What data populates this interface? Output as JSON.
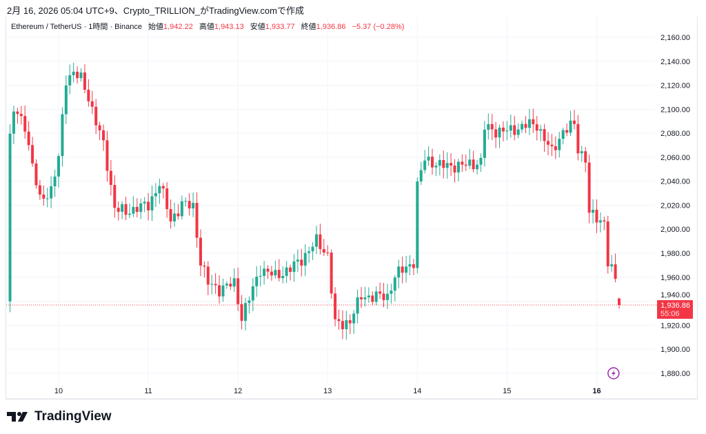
{
  "caption": "2月 16, 2026 05:04 UTC+9、Crypto_TRILLION_がTradingView.comで作成",
  "legend": {
    "symbol": "Ethereum / TetherUS · 1時間 · Binance",
    "open_label": "始値",
    "open": "1,942.22",
    "high_label": "高値",
    "high": "1,943.13",
    "low_label": "安値",
    "low": "1,933.77",
    "close_label": "終値",
    "close": "1,936.86",
    "change": "−5.37 (−0.28%)"
  },
  "price_label": {
    "price": "1,936.86",
    "countdown": "55:06"
  },
  "logo_text": "TradingView",
  "colors": {
    "up": "#22ab94",
    "down": "#f23645",
    "grid": "#f0f3fa",
    "lightning": "#9c27b0"
  },
  "chart_data": {
    "type": "candlestick",
    "interval": "1h",
    "x_unit": "hours since Feb 10 00:00",
    "xticks": [
      {
        "hour": 0,
        "label": "10"
      },
      {
        "hour": 24,
        "label": "11"
      },
      {
        "hour": 48,
        "label": "12"
      },
      {
        "hour": 72,
        "label": "13"
      },
      {
        "hour": 96,
        "label": "14"
      },
      {
        "hour": 120,
        "label": "15"
      },
      {
        "hour": 144,
        "label": "16"
      }
    ],
    "yticks": [
      "2,160.00",
      "2,140.00",
      "2,120.00",
      "2,100.00",
      "2,080.00",
      "2,060.00",
      "2,040.00",
      "2,020.00",
      "2,000.00",
      "1,980.00",
      "1,960.00",
      "1,940.00",
      "1,920.00",
      "1,900.00",
      "1,880.00"
    ],
    "ylim": [
      1870,
      2172
    ],
    "close_path": [
      [
        -13,
        2076
      ],
      [
        -12,
        2099
      ],
      [
        -9,
        2087
      ],
      [
        -7,
        2053
      ],
      [
        -5,
        2024
      ],
      [
        -2,
        2033
      ],
      [
        0,
        2059
      ],
      [
        2,
        2125
      ],
      [
        4,
        2131
      ],
      [
        6,
        2125
      ],
      [
        8,
        2110
      ],
      [
        12,
        2070
      ],
      [
        15,
        2019
      ],
      [
        18,
        2013
      ],
      [
        21,
        2019
      ],
      [
        24,
        2019
      ],
      [
        27,
        2039
      ],
      [
        30,
        2007
      ],
      [
        33,
        2021
      ],
      [
        36,
        2019
      ],
      [
        38,
        1973
      ],
      [
        40,
        1955
      ],
      [
        43,
        1950
      ],
      [
        47,
        1955
      ],
      [
        49,
        1927
      ],
      [
        52,
        1950
      ],
      [
        54,
        1967
      ],
      [
        58,
        1961
      ],
      [
        62,
        1967
      ],
      [
        65,
        1975
      ],
      [
        69,
        1990
      ],
      [
        72,
        1979
      ],
      [
        74,
        1921
      ],
      [
        76,
        1921
      ],
      [
        78,
        1924
      ],
      [
        81,
        1944
      ],
      [
        85,
        1944
      ],
      [
        88,
        1944
      ],
      [
        90,
        1961
      ],
      [
        95,
        1973
      ],
      [
        96,
        2036
      ],
      [
        98,
        2059
      ],
      [
        102,
        2053
      ],
      [
        108,
        2053
      ],
      [
        113,
        2056
      ],
      [
        114,
        2085
      ],
      [
        117,
        2082
      ],
      [
        121,
        2082
      ],
      [
        125,
        2087
      ],
      [
        128,
        2087
      ],
      [
        132,
        2064
      ],
      [
        135,
        2082
      ],
      [
        138,
        2087
      ],
      [
        139,
        2067
      ],
      [
        141,
        2059
      ],
      [
        142,
        2013
      ],
      [
        145,
        2007
      ],
      [
        146,
        2007
      ],
      [
        147,
        1973
      ],
      [
        149,
        1958
      ],
      [
        150,
        1936.86
      ]
    ],
    "last_candle": {
      "open": 1942.22,
      "high": 1943.13,
      "low": 1933.77,
      "close": 1936.86
    }
  }
}
